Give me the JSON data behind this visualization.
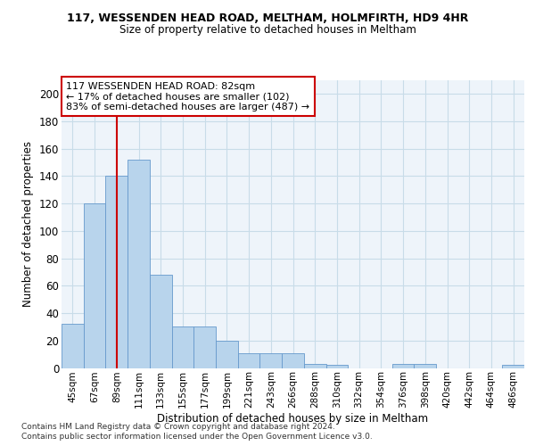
{
  "title1": "117, WESSENDEN HEAD ROAD, MELTHAM, HOLMFIRTH, HD9 4HR",
  "title2": "Size of property relative to detached houses in Meltham",
  "xlabel": "Distribution of detached houses by size in Meltham",
  "ylabel": "Number of detached properties",
  "footer1": "Contains HM Land Registry data © Crown copyright and database right 2024.",
  "footer2": "Contains public sector information licensed under the Open Government Licence v3.0.",
  "annotation_line1": "117 WESSENDEN HEAD ROAD: 82sqm",
  "annotation_line2": "← 17% of detached houses are smaller (102)",
  "annotation_line3": "83% of semi-detached houses are larger (487) →",
  "bar_color": "#b8d4ec",
  "bar_edge_color": "#6699cc",
  "grid_color": "#c8dce8",
  "annotation_box_edgecolor": "#cc0000",
  "vline_color": "#cc0000",
  "bg_color": "#eef4fa",
  "categories": [
    "45sqm",
    "67sqm",
    "89sqm",
    "111sqm",
    "133sqm",
    "155sqm",
    "177sqm",
    "199sqm",
    "221sqm",
    "243sqm",
    "266sqm",
    "288sqm",
    "310sqm",
    "332sqm",
    "354sqm",
    "376sqm",
    "398sqm",
    "420sqm",
    "442sqm",
    "464sqm",
    "486sqm"
  ],
  "values": [
    32,
    120,
    140,
    152,
    68,
    30,
    30,
    20,
    11,
    11,
    11,
    3,
    2,
    0,
    0,
    3,
    3,
    0,
    0,
    0,
    2
  ],
  "ylim": [
    0,
    210
  ],
  "yticks": [
    0,
    20,
    40,
    60,
    80,
    100,
    120,
    140,
    160,
    180,
    200
  ],
  "vline_x": 2.0
}
